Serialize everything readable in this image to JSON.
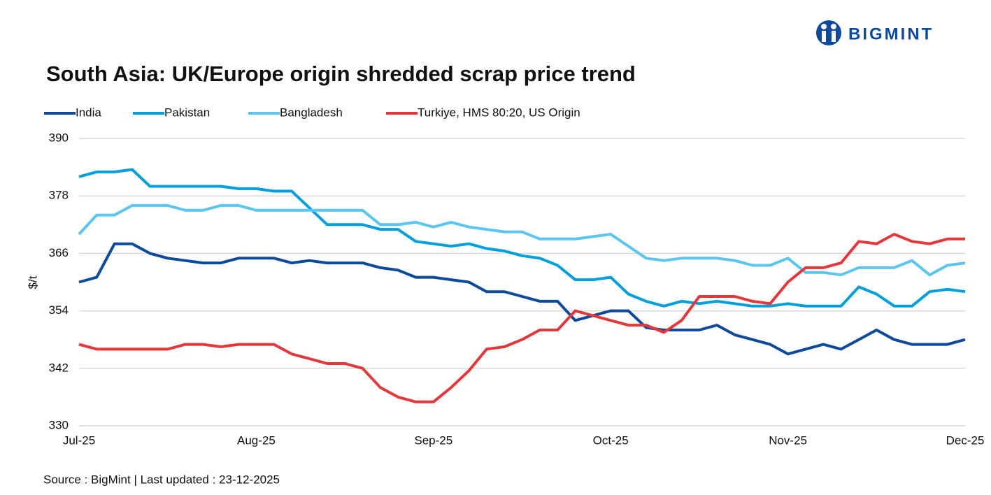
{
  "logo": "BIGMINT",
  "chart_data": {
    "type": "line",
    "title": "South Asia: UK/Europe origin shredded scrap price trend",
    "y_label": "$/t",
    "source": "Source : BigMint | Last updated : 23-12-2025",
    "categories": [
      "Jul-25",
      null,
      null,
      null,
      null,
      null,
      null,
      null,
      null,
      null,
      "Aug-25",
      null,
      null,
      null,
      null,
      null,
      null,
      null,
      null,
      null,
      "Sep-25",
      null,
      null,
      null,
      null,
      null,
      null,
      null,
      null,
      null,
      "Oct-25",
      null,
      null,
      null,
      null,
      null,
      null,
      null,
      null,
      null,
      "Nov-25",
      null,
      null,
      null,
      null,
      null,
      null,
      null,
      null,
      null,
      "Dec-25"
    ],
    "ylim": [
      330,
      390
    ],
    "yticks": [
      330,
      342,
      354,
      366,
      378,
      390
    ],
    "grid": true,
    "series": [
      {
        "name": "India",
        "color": "#0d4a9b",
        "values": [
          360,
          361,
          368,
          368,
          366,
          365,
          364.5,
          364,
          364,
          365,
          365,
          365,
          364,
          364.5,
          364,
          364,
          364,
          363,
          362.5,
          361,
          361,
          360.5,
          360,
          358,
          358,
          357,
          356,
          356,
          352,
          353,
          354,
          354,
          350.5,
          350,
          350,
          350,
          351,
          349,
          348,
          347,
          345,
          346,
          347,
          346,
          348,
          350,
          348,
          347,
          347,
          347,
          348
        ]
      },
      {
        "name": "Pakistan",
        "color": "#009fdc",
        "values": [
          382,
          383,
          383,
          383.5,
          380,
          380,
          380,
          380,
          380,
          379.5,
          379.5,
          379,
          379,
          375.5,
          372,
          372,
          372,
          371,
          371,
          368.5,
          368,
          367.5,
          368,
          367,
          366.5,
          365.5,
          365,
          363.5,
          360.5,
          360.5,
          361,
          357.5,
          356,
          355,
          356,
          355.5,
          356,
          355.5,
          355,
          355,
          355.5,
          355,
          355,
          355,
          359,
          357.5,
          355,
          355,
          358,
          358.5,
          358
        ]
      },
      {
        "name": "Bangladesh",
        "color": "#5bc5f0",
        "values": [
          370,
          374,
          374,
          376,
          376,
          376,
          375,
          375,
          376,
          376,
          375,
          375,
          375,
          375,
          375,
          375,
          375,
          372,
          372,
          372.5,
          371.5,
          372.5,
          371.5,
          371,
          370.5,
          370.5,
          369,
          369,
          369,
          369.5,
          370,
          367.5,
          365,
          364.5,
          365,
          365,
          365,
          364.5,
          363.5,
          363.5,
          365,
          362,
          362,
          361.5,
          363,
          363,
          363,
          364.5,
          361.5,
          363.5,
          364
        ]
      },
      {
        "name": "Turkiye, HMS 80:20, US Origin",
        "color": "#e3383a",
        "values": [
          347,
          346,
          346,
          346,
          346,
          346,
          347,
          347,
          346.5,
          347,
          347,
          347,
          345,
          344,
          343,
          343,
          342,
          338,
          336,
          335,
          335,
          338,
          341.5,
          346,
          346.5,
          348,
          350,
          350,
          354,
          353,
          352,
          351,
          351,
          349.5,
          352,
          357,
          357,
          357,
          356,
          355.5,
          360,
          363,
          363,
          364,
          368.5,
          368,
          370,
          368.5,
          368,
          369,
          369
        ]
      }
    ]
  }
}
